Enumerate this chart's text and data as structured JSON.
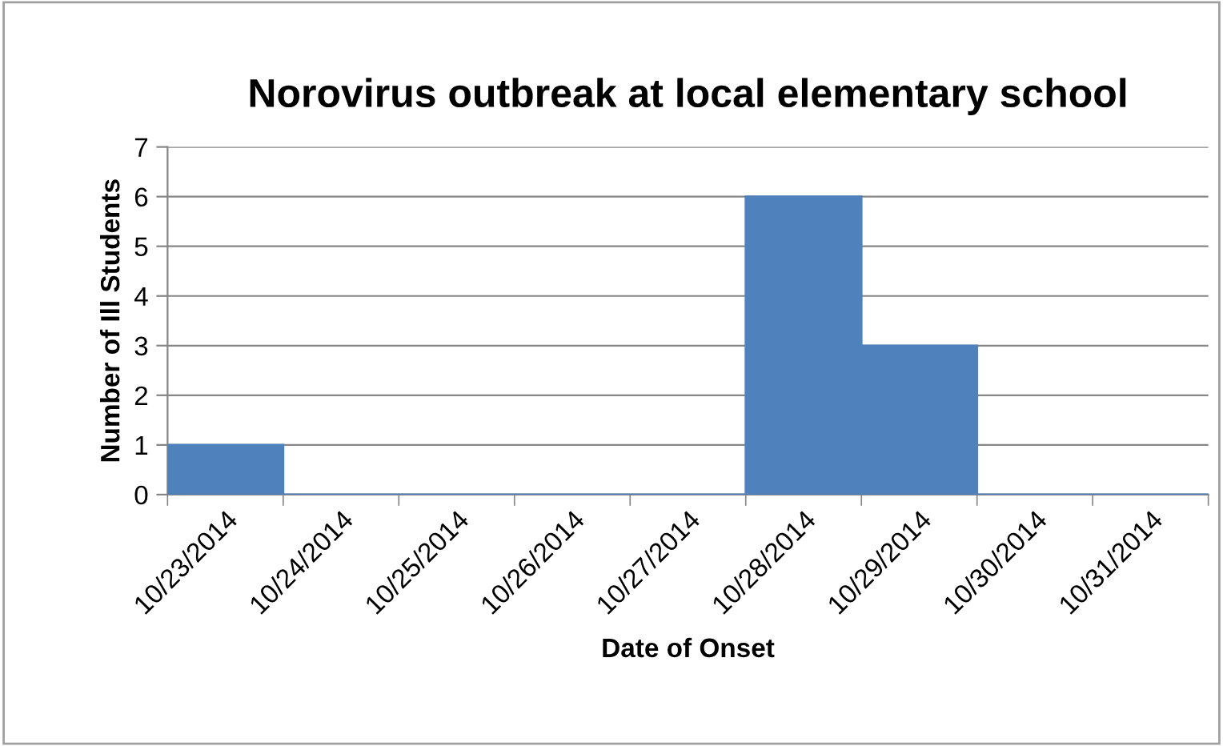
{
  "chart_data": {
    "type": "bar",
    "title": "Norovirus outbreak at local elementary school",
    "xlabel": "Date of Onset",
    "ylabel": "Number of Ill Students",
    "categories": [
      "10/23/2014",
      "10/24/2014",
      "10/25/2014",
      "10/26/2014",
      "10/27/2014",
      "10/28/2014",
      "10/29/2014",
      "10/30/2014",
      "10/31/2014"
    ],
    "values": [
      1,
      0,
      0,
      0,
      0,
      6,
      3,
      0,
      0
    ],
    "color": "#4f81bd",
    "ylim": [
      0,
      7
    ],
    "yticks": [
      0,
      1,
      2,
      3,
      4,
      5,
      6,
      7
    ],
    "grid": "y",
    "legend": false
  }
}
